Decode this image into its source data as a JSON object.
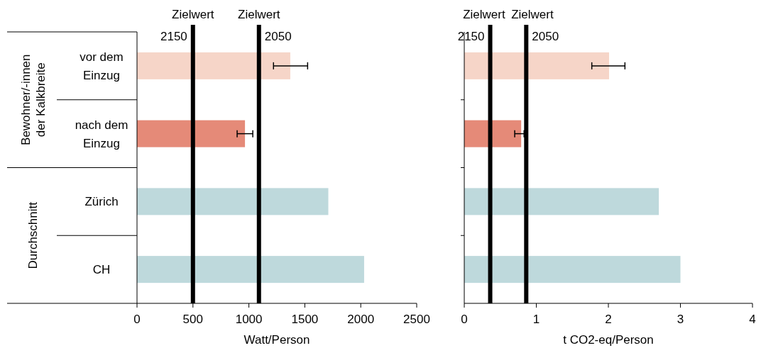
{
  "chart_data": [
    {
      "type": "bar",
      "orientation": "horizontal",
      "categories": [
        "vor dem Einzug",
        "nach dem Einzug",
        "Zürich",
        "CH"
      ],
      "values": [
        1370,
        965,
        1710,
        2030
      ],
      "colors": [
        "#f6d5c8",
        "#e58a78",
        "#bed9dc",
        "#bed9dc"
      ],
      "errors": [
        [
          1220,
          1525
        ],
        [
          895,
          1035
        ],
        null,
        null
      ],
      "xlim": [
        0,
        2500
      ],
      "xticks": [
        0,
        500,
        1000,
        1500,
        2000,
        2500
      ],
      "xlabel": "Watt/Person",
      "ref_lines": [
        {
          "axis": "x",
          "value": 500,
          "label": "Zielwert 2150",
          "color": "#000000"
        },
        {
          "axis": "x",
          "value": 1090,
          "label": "Zielwert 2050",
          "color": "#000000"
        }
      ],
      "annotations": [
        "Bewohner/-innen der Kalkbreite",
        "Durchschnitt"
      ]
    },
    {
      "type": "bar",
      "orientation": "horizontal",
      "values": [
        2.01,
        0.79,
        2.7,
        3.0
      ],
      "colors": [
        "#f6d5c8",
        "#e58a78",
        "#bed9dc",
        "#bed9dc"
      ],
      "errors": [
        [
          1.77,
          2.23
        ],
        [
          0.7,
          0.83
        ],
        null,
        null
      ],
      "xlim": [
        0,
        4
      ],
      "xticks": [
        0,
        1,
        2,
        3,
        4
      ],
      "xlabel": "t CO2-eq/Person",
      "ref_lines": [
        {
          "axis": "x",
          "value": 0.36,
          "label": "Zielwert 2150",
          "color": "#000000"
        },
        {
          "axis": "x",
          "value": 0.86,
          "label": "Zielwert 2050",
          "color": "#000000"
        }
      ],
      "tick_labels": "x"
    }
  ]
}
